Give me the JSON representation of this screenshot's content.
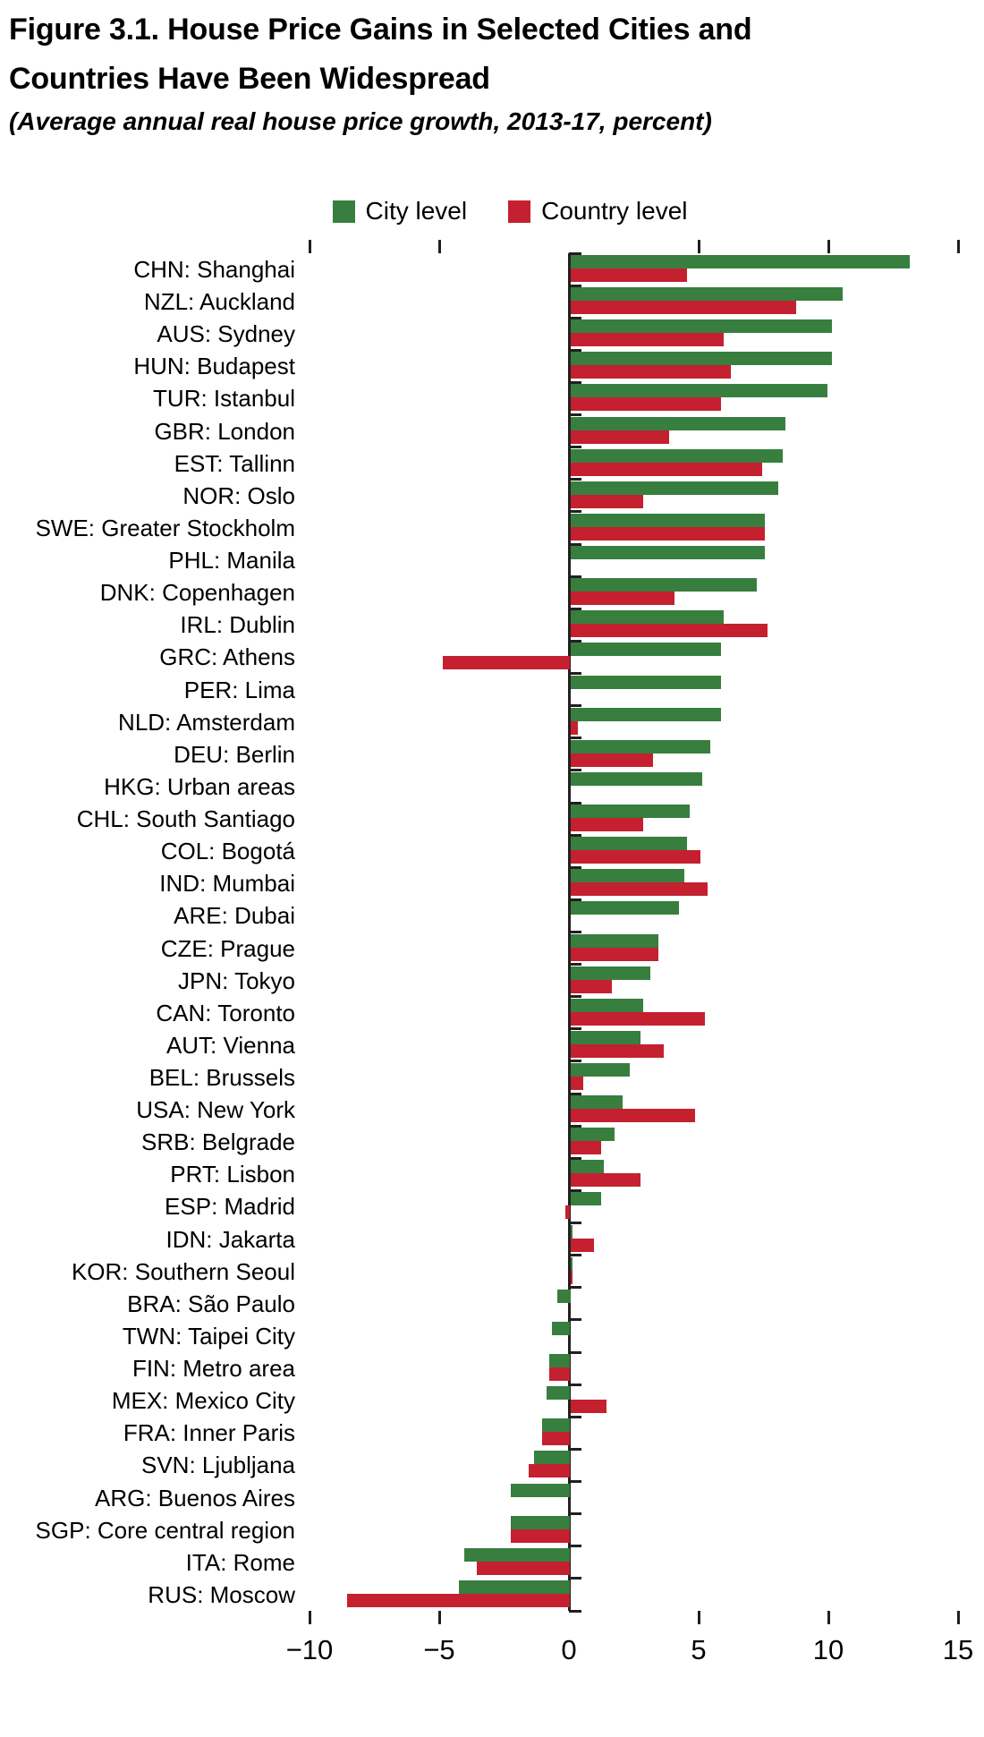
{
  "figure": {
    "title_line1": "Figure 3.1. House Price Gains in Selected Cities and",
    "title_line2": "Countries Have Been Widespread",
    "subtitle": "(Average annual real house price growth, 2013-17, percent)"
  },
  "legend": {
    "city_label": "City level",
    "country_label": "Country level"
  },
  "colors": {
    "city": "#377e3f",
    "country": "#c42030",
    "axis": "#231f20"
  },
  "chart_data": {
    "type": "bar",
    "orientation": "horizontal",
    "title": "Figure 3.1. House Price Gains in Selected Cities and Countries Have Been Widespread",
    "subtitle": "(Average annual real house price growth, 2013-17, percent)",
    "xlabel": "",
    "ylabel": "",
    "xlim": [
      -10,
      15
    ],
    "x_ticks": [
      -10,
      -5,
      0,
      5,
      10,
      15
    ],
    "x_tick_labels": [
      "−10",
      "−5",
      "0",
      "5",
      "10",
      "15"
    ],
    "grid": false,
    "legend_position": "top",
    "series_names": [
      "City level",
      "Country level"
    ],
    "rows": [
      {
        "label": "CHN: Shanghai",
        "city": 13.1,
        "country": 4.5
      },
      {
        "label": "NZL: Auckland",
        "city": 10.5,
        "country": 8.7
      },
      {
        "label": "AUS: Sydney",
        "city": 10.1,
        "country": 5.9
      },
      {
        "label": "HUN: Budapest",
        "city": 10.1,
        "country": 6.2
      },
      {
        "label": "TUR: Istanbul",
        "city": 9.9,
        "country": 5.8
      },
      {
        "label": "GBR: London",
        "city": 8.3,
        "country": 3.8
      },
      {
        "label": "EST: Tallinn",
        "city": 8.2,
        "country": 7.4
      },
      {
        "label": "NOR: Oslo",
        "city": 8.0,
        "country": 2.8
      },
      {
        "label": "SWE: Greater Stockholm",
        "city": 7.5,
        "country": 7.5
      },
      {
        "label": "PHL: Manila",
        "city": 7.5,
        "country": null
      },
      {
        "label": "DNK: Copenhagen",
        "city": 7.2,
        "country": 4.0
      },
      {
        "label": "IRL: Dublin",
        "city": 5.9,
        "country": 7.6
      },
      {
        "label": "GRC: Athens",
        "city": 5.8,
        "country": -4.9
      },
      {
        "label": "PER: Lima",
        "city": 5.8,
        "country": null
      },
      {
        "label": "NLD: Amsterdam",
        "city": 5.8,
        "country": 0.3
      },
      {
        "label": "DEU: Berlin",
        "city": 5.4,
        "country": 3.2
      },
      {
        "label": "HKG: Urban areas",
        "city": 5.1,
        "country": null
      },
      {
        "label": "CHL: South Santiago",
        "city": 4.6,
        "country": 2.8
      },
      {
        "label": "COL: Bogotá",
        "city": 4.5,
        "country": 5.0
      },
      {
        "label": "IND: Mumbai",
        "city": 4.4,
        "country": 5.3
      },
      {
        "label": "ARE: Dubai",
        "city": 4.2,
        "country": null
      },
      {
        "label": "CZE: Prague",
        "city": 3.4,
        "country": 3.4
      },
      {
        "label": "JPN: Tokyo",
        "city": 3.1,
        "country": 1.6
      },
      {
        "label": "CAN: Toronto",
        "city": 2.8,
        "country": 5.2
      },
      {
        "label": "AUT: Vienna",
        "city": 2.7,
        "country": 3.6
      },
      {
        "label": "BEL: Brussels",
        "city": 2.3,
        "country": 0.5
      },
      {
        "label": "USA: New York",
        "city": 2.0,
        "country": 4.8
      },
      {
        "label": "SRB: Belgrade",
        "city": 1.7,
        "country": 1.2
      },
      {
        "label": "PRT: Lisbon",
        "city": 1.3,
        "country": 2.7
      },
      {
        "label": "ESP: Madrid",
        "city": 1.2,
        "country": -0.2
      },
      {
        "label": "IDN: Jakarta",
        "city": 0.1,
        "country": 0.9
      },
      {
        "label": "KOR: Southern Seoul",
        "city": 0.1,
        "country": 0.1
      },
      {
        "label": "BRA: São Paulo",
        "city": -0.5,
        "country": null
      },
      {
        "label": "TWN: Taipei City",
        "city": -0.7,
        "country": null
      },
      {
        "label": "FIN: Metro area",
        "city": -0.8,
        "country": -0.8
      },
      {
        "label": "MEX: Mexico City",
        "city": -0.9,
        "country": 1.4
      },
      {
        "label": "FRA: Inner Paris",
        "city": -1.1,
        "country": -1.1
      },
      {
        "label": "SVN: Ljubljana",
        "city": -1.4,
        "country": -1.6
      },
      {
        "label": "ARG: Buenos Aires",
        "city": -2.3,
        "country": null
      },
      {
        "label": "SGP: Core central region",
        "city": -2.3,
        "country": -2.3
      },
      {
        "label": "ITA: Rome",
        "city": -4.1,
        "country": -3.6
      },
      {
        "label": "RUS: Moscow",
        "city": -4.3,
        "country": -8.6
      }
    ]
  }
}
